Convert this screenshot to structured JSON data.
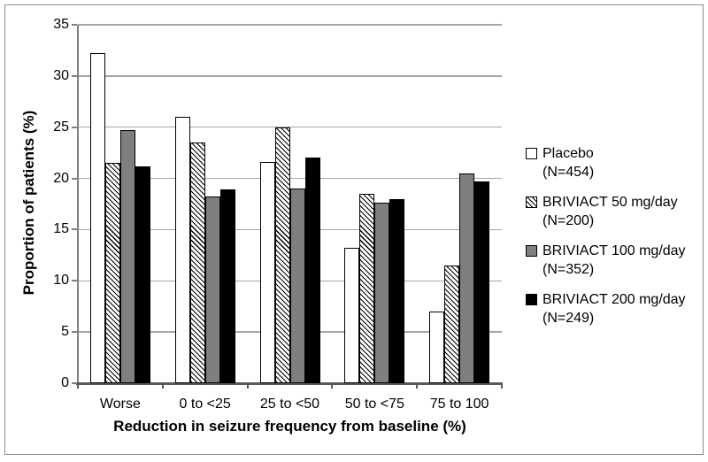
{
  "figure": {
    "background": "#ffffff",
    "border_color": "#8f8f8f"
  },
  "chart_data": {
    "type": "bar",
    "title": "",
    "categories": [
      "Worse",
      "0 to <25",
      "25 to <50",
      "50 to <75",
      "75 to 100"
    ],
    "series": [
      {
        "name": "Placebo",
        "n": "(N=454)",
        "style": "white",
        "values": [
          32.2,
          26.0,
          21.6,
          13.2,
          7.0
        ]
      },
      {
        "name": "BRIVIACT 50 mg/day",
        "n": "(N=200)",
        "style": "hatch",
        "values": [
          21.5,
          23.5,
          25.0,
          18.5,
          11.5
        ]
      },
      {
        "name": "BRIVIACT 100 mg/day",
        "n": "(N=352)",
        "style": "gray",
        "values": [
          24.7,
          18.2,
          19.0,
          17.6,
          20.5
        ]
      },
      {
        "name": "BRIVIACT 200 mg/day",
        "n": "(N=249)",
        "style": "black",
        "values": [
          21.2,
          18.9,
          22.0,
          18.0,
          19.7
        ]
      }
    ],
    "xlabel": "Reduction in seizure frequency from baseline (%)",
    "ylabel": "Proportion of patients (%)",
    "ylim": [
      0,
      35
    ],
    "yticks": [
      0,
      5,
      10,
      15,
      20,
      25,
      30,
      35
    ],
    "grid": true,
    "legend_position": "right"
  },
  "colors": {
    "bar_gray": "#7f7f7f",
    "bar_black": "#000000",
    "bar_border": "#000000",
    "gridline": "#a6a6a6",
    "y_axis": "#808080",
    "x_axis": "#595959"
  }
}
